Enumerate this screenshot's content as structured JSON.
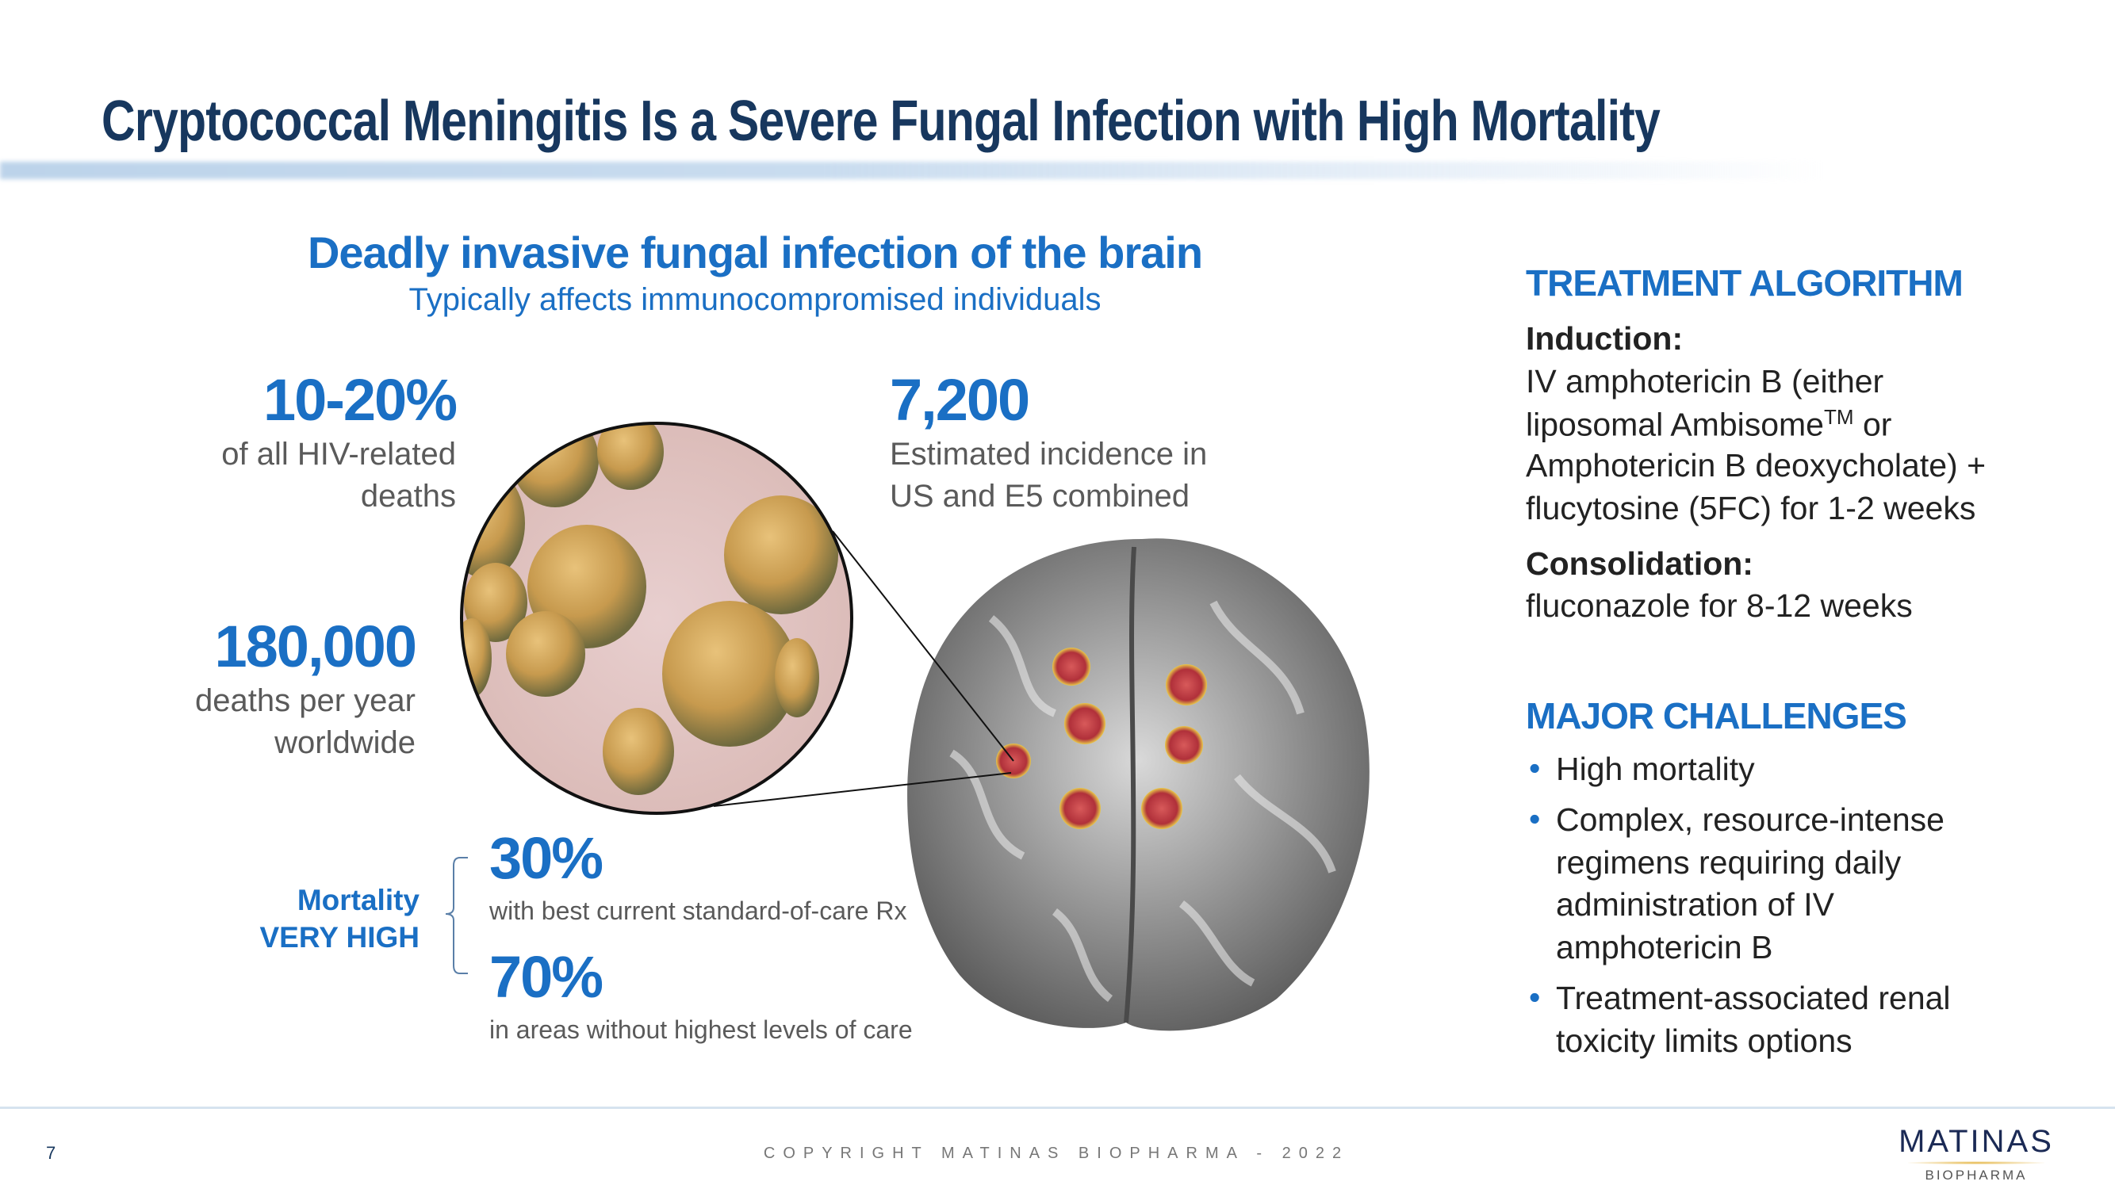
{
  "title": "Cryptococcal Meningitis Is a Severe Fungal Infection with High Mortality",
  "headline": "Deadly invasive fungal infection of the brain",
  "subheadline": "Typically affects immunocompromised individuals",
  "stats": {
    "hiv": {
      "value": "10-20%",
      "line1": "of all HIV-related",
      "line2": "deaths"
    },
    "incidence": {
      "value": "7,200",
      "line1": "Estimated incidence in",
      "line2": "US and E5 combined"
    },
    "deaths": {
      "value": "180,000",
      "line1": "deaths per year",
      "line2": "worldwide"
    }
  },
  "mortality": {
    "label1": "Mortality",
    "label2": "VERY HIGH",
    "items": [
      {
        "value": "30%",
        "desc": "with best current standard-of-care Rx"
      },
      {
        "value": "70%",
        "desc": "in areas without highest levels of care"
      }
    ]
  },
  "treatment": {
    "heading": "TREATMENT ALGORITHM",
    "induction_label": "Induction:",
    "induction_lines": [
      "IV amphotericin B (either",
      "liposomal Ambisome",
      "TM",
      " or",
      "Amphotericin B deoxycholate) +",
      "flucytosine (5FC) for 1-2 weeks"
    ],
    "consolidation_label": "Consolidation:",
    "consolidation_text": "fluconazole for 8-12 weeks"
  },
  "challenges": {
    "heading": "MAJOR CHALLENGES",
    "bullet": "•",
    "items": [
      {
        "lines": [
          "High mortality"
        ]
      },
      {
        "lines": [
          "Complex, resource-intense",
          "regimens requiring daily",
          "administration of IV",
          "amphotericin B"
        ]
      },
      {
        "lines": [
          "Treatment-associated renal",
          "toxicity limits options"
        ]
      }
    ]
  },
  "footer": {
    "page_number": "7",
    "copyright": "COPYRIGHT MATINAS BIOPHARMA - 2022",
    "logo_main": "MATINAS",
    "logo_sub": "BIOPHARMA"
  },
  "colors": {
    "title": "#17375e",
    "accent": "#1a6fc4",
    "text": "#5a5a5a"
  },
  "images": {
    "microscopy": "cryptococcus-cells-illustration",
    "brain": "brain-with-lesions-illustration"
  }
}
